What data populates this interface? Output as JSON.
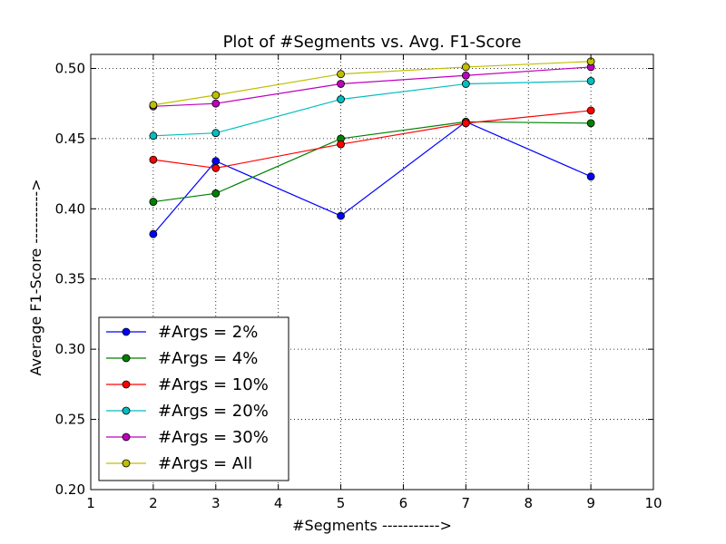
{
  "chart_data": {
    "type": "line",
    "title": "Plot of #Segments vs. Avg. F1-Score",
    "xlabel": "#Segments ----------->",
    "ylabel": "Average F1-Score ---------->",
    "xlim": [
      1,
      10
    ],
    "ylim": [
      0.2,
      0.51
    ],
    "xticks": [
      "1",
      "2",
      "3",
      "4",
      "5",
      "6",
      "7",
      "8",
      "9",
      "10"
    ],
    "yticks": [
      "0.20",
      "0.25",
      "0.30",
      "0.35",
      "0.40",
      "0.45",
      "0.50"
    ],
    "grid": true,
    "legend_position": "lower-left",
    "x": [
      2,
      3,
      5,
      7,
      9
    ],
    "series": [
      {
        "name": "#Args = 2%",
        "color": "#0000ff",
        "values": [
          0.382,
          0.434,
          0.395,
          0.462,
          0.423
        ]
      },
      {
        "name": "#Args = 4%",
        "color": "#008000",
        "values": [
          0.405,
          0.411,
          0.45,
          0.462,
          0.461
        ]
      },
      {
        "name": "#Args = 10%",
        "color": "#ff0000",
        "values": [
          0.435,
          0.429,
          0.446,
          0.461,
          0.47
        ]
      },
      {
        "name": "#Args = 20%",
        "color": "#00bfbf",
        "values": [
          0.452,
          0.454,
          0.478,
          0.489,
          0.491
        ]
      },
      {
        "name": "#Args = 30%",
        "color": "#bf00bf",
        "values": [
          0.473,
          0.475,
          0.489,
          0.495,
          0.501
        ]
      },
      {
        "name": "#Args = All",
        "color": "#bfbf00",
        "values": [
          0.474,
          0.481,
          0.496,
          0.501,
          0.505
        ]
      }
    ]
  }
}
